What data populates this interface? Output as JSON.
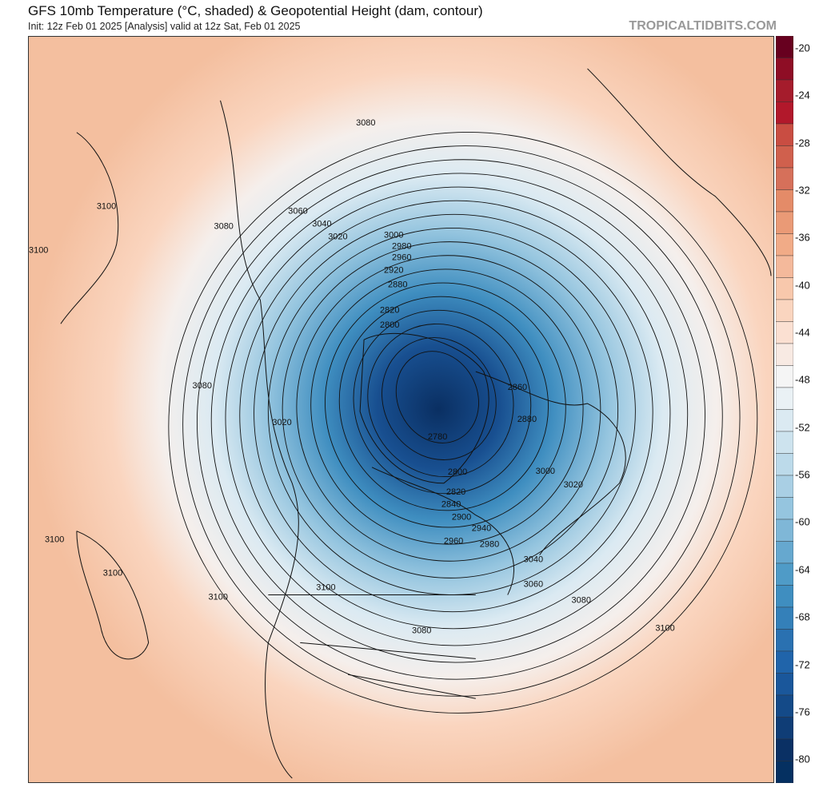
{
  "header": {
    "title": "GFS 10mb Temperature (°C, shaded) & Geopotential Height (dam, contour)",
    "subtitle": "Init: 12z Feb 01 2025   [Analysis]   valid at 12z Sat, Feb 01 2025",
    "brand": "TROPICALTIDBITS.COM"
  },
  "colorbar": {
    "range": [
      -82,
      -19
    ],
    "tick_labels": [
      "-20",
      "-24",
      "-28",
      "-32",
      "-36",
      "-40",
      "-44",
      "-48",
      "-52",
      "-56",
      "-60",
      "-64",
      "-68",
      "-72",
      "-76",
      "-80"
    ],
    "colors": [
      "#67001f",
      "#8e0d25",
      "#a51c2c",
      "#b2182b",
      "#c94d42",
      "#d0604d",
      "#d6705a",
      "#e48b68",
      "#ea9a76",
      "#f1ab87",
      "#f4b99b",
      "#f8c8ac",
      "#fad5bf",
      "#fbe0d2",
      "#f8eae3",
      "#f5f5f5",
      "#eaf1f5",
      "#dbeaf2",
      "#cde3ee",
      "#bcdaea",
      "#a9cfe4",
      "#95c5df",
      "#7fb7d7",
      "#66a8cf",
      "#4f9bc7",
      "#3f8ec0",
      "#3480b9",
      "#2a71b1",
      "#2064aa",
      "#1a579b",
      "#144a88",
      "#0f3d76",
      "#0a3064",
      "#053061"
    ]
  },
  "map": {
    "contour_levels": [
      2780,
      2800,
      2820,
      2840,
      2860,
      2880,
      2900,
      2920,
      2940,
      2960,
      2980,
      3000,
      3020,
      3040,
      3060,
      3080,
      3100
    ],
    "contour_labels": [
      {
        "text": "3080"
      },
      {
        "text": "3100"
      },
      {
        "text": "3100"
      },
      {
        "text": "3080"
      },
      {
        "text": "3060"
      },
      {
        "text": "3040"
      },
      {
        "text": "3020"
      },
      {
        "text": "3000"
      },
      {
        "text": "2980"
      },
      {
        "text": "2960"
      },
      {
        "text": "2920"
      },
      {
        "text": "2880"
      },
      {
        "text": "2820"
      },
      {
        "text": "2800"
      },
      {
        "text": "3080"
      },
      {
        "text": "3020"
      },
      {
        "text": "2860"
      },
      {
        "text": "2880"
      },
      {
        "text": "2780"
      },
      {
        "text": "2800"
      },
      {
        "text": "2820"
      },
      {
        "text": "2840"
      },
      {
        "text": "2900"
      },
      {
        "text": "2940"
      },
      {
        "text": "2960"
      },
      {
        "text": "2980"
      },
      {
        "text": "3000"
      },
      {
        "text": "3020"
      },
      {
        "text": "3040"
      },
      {
        "text": "3060"
      },
      {
        "text": "3080"
      },
      {
        "text": "3080"
      },
      {
        "text": "3100"
      },
      {
        "text": "3100"
      },
      {
        "text": "3100"
      },
      {
        "text": "3100"
      },
      {
        "text": "3100"
      }
    ]
  }
}
